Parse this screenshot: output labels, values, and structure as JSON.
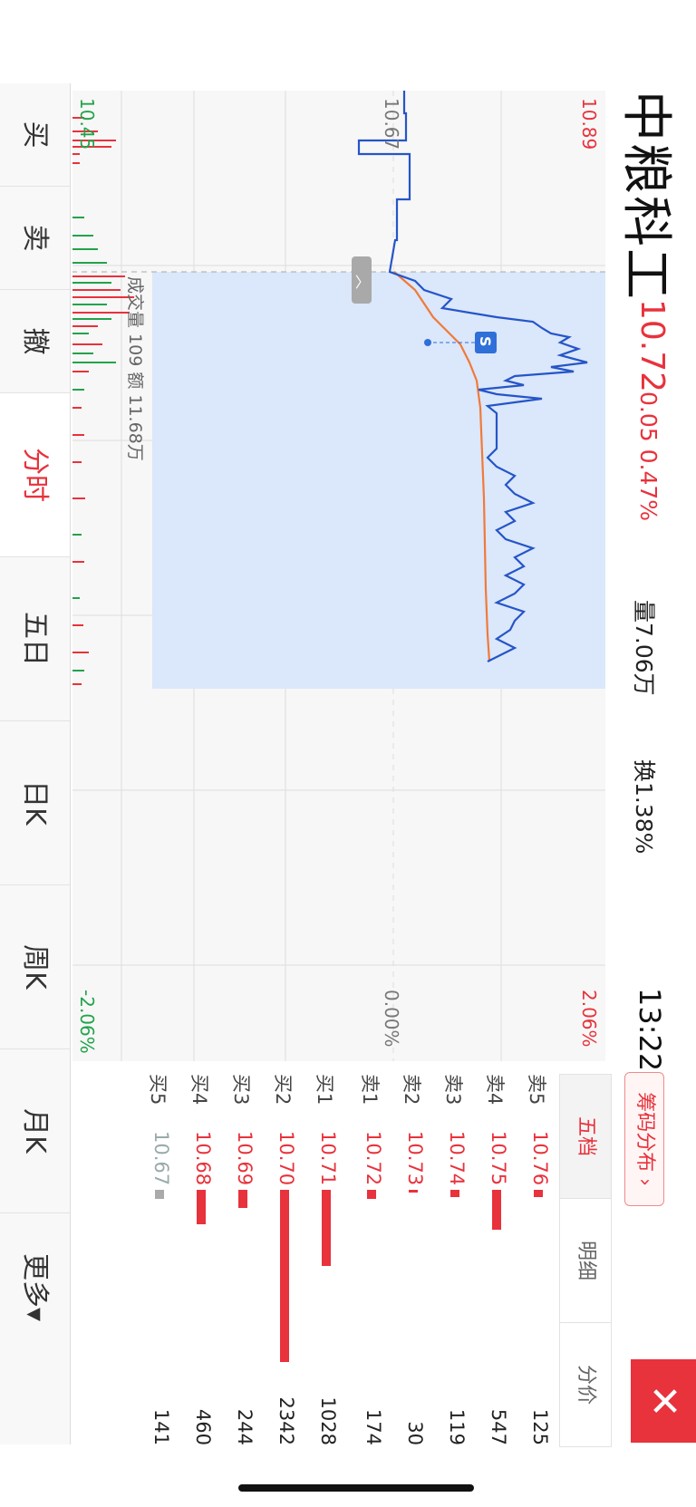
{
  "header": {
    "stock_name": "中粮科工",
    "price": "10.72",
    "change": "0.05 0.47%",
    "volume": "量7.06万",
    "turnover": "换1.38%",
    "time": "13:22",
    "chip_button": "筹码分布 ›"
  },
  "chart": {
    "price_high": "10.89",
    "price_mid": "10.67",
    "price_low": "10.45",
    "pct_high": "2.06%",
    "pct_mid": "0.00%",
    "pct_low": "-2.06%",
    "tooltip": "成交量 109  额 11.68万",
    "marker_label": "S"
  },
  "depth": {
    "tabs": [
      "五档",
      "明细",
      "分价"
    ],
    "asks": [
      {
        "label": "卖5",
        "price": "10.76",
        "qty": "125"
      },
      {
        "label": "卖4",
        "price": "10.75",
        "qty": "547"
      },
      {
        "label": "卖3",
        "price": "10.74",
        "qty": "119"
      },
      {
        "label": "卖2",
        "price": "10.73",
        "qty": "30"
      },
      {
        "label": "卖1",
        "price": "10.72",
        "qty": "174"
      }
    ],
    "bids": [
      {
        "label": "买1",
        "price": "10.71",
        "qty": "1028"
      },
      {
        "label": "买2",
        "price": "10.70",
        "qty": "2342"
      },
      {
        "label": "买3",
        "price": "10.69",
        "qty": "244"
      },
      {
        "label": "买4",
        "price": "10.68",
        "qty": "460"
      },
      {
        "label": "买5",
        "price": "10.67",
        "qty": "141"
      }
    ]
  },
  "nav": [
    "买",
    "卖",
    "撤",
    "分时",
    "五日",
    "日K",
    "周K",
    "月K",
    "更多▾"
  ],
  "colors": {
    "up": "#e8323c",
    "down": "#22a34a",
    "price_line": "#2555c8",
    "avg_line": "#f07a3a"
  }
}
